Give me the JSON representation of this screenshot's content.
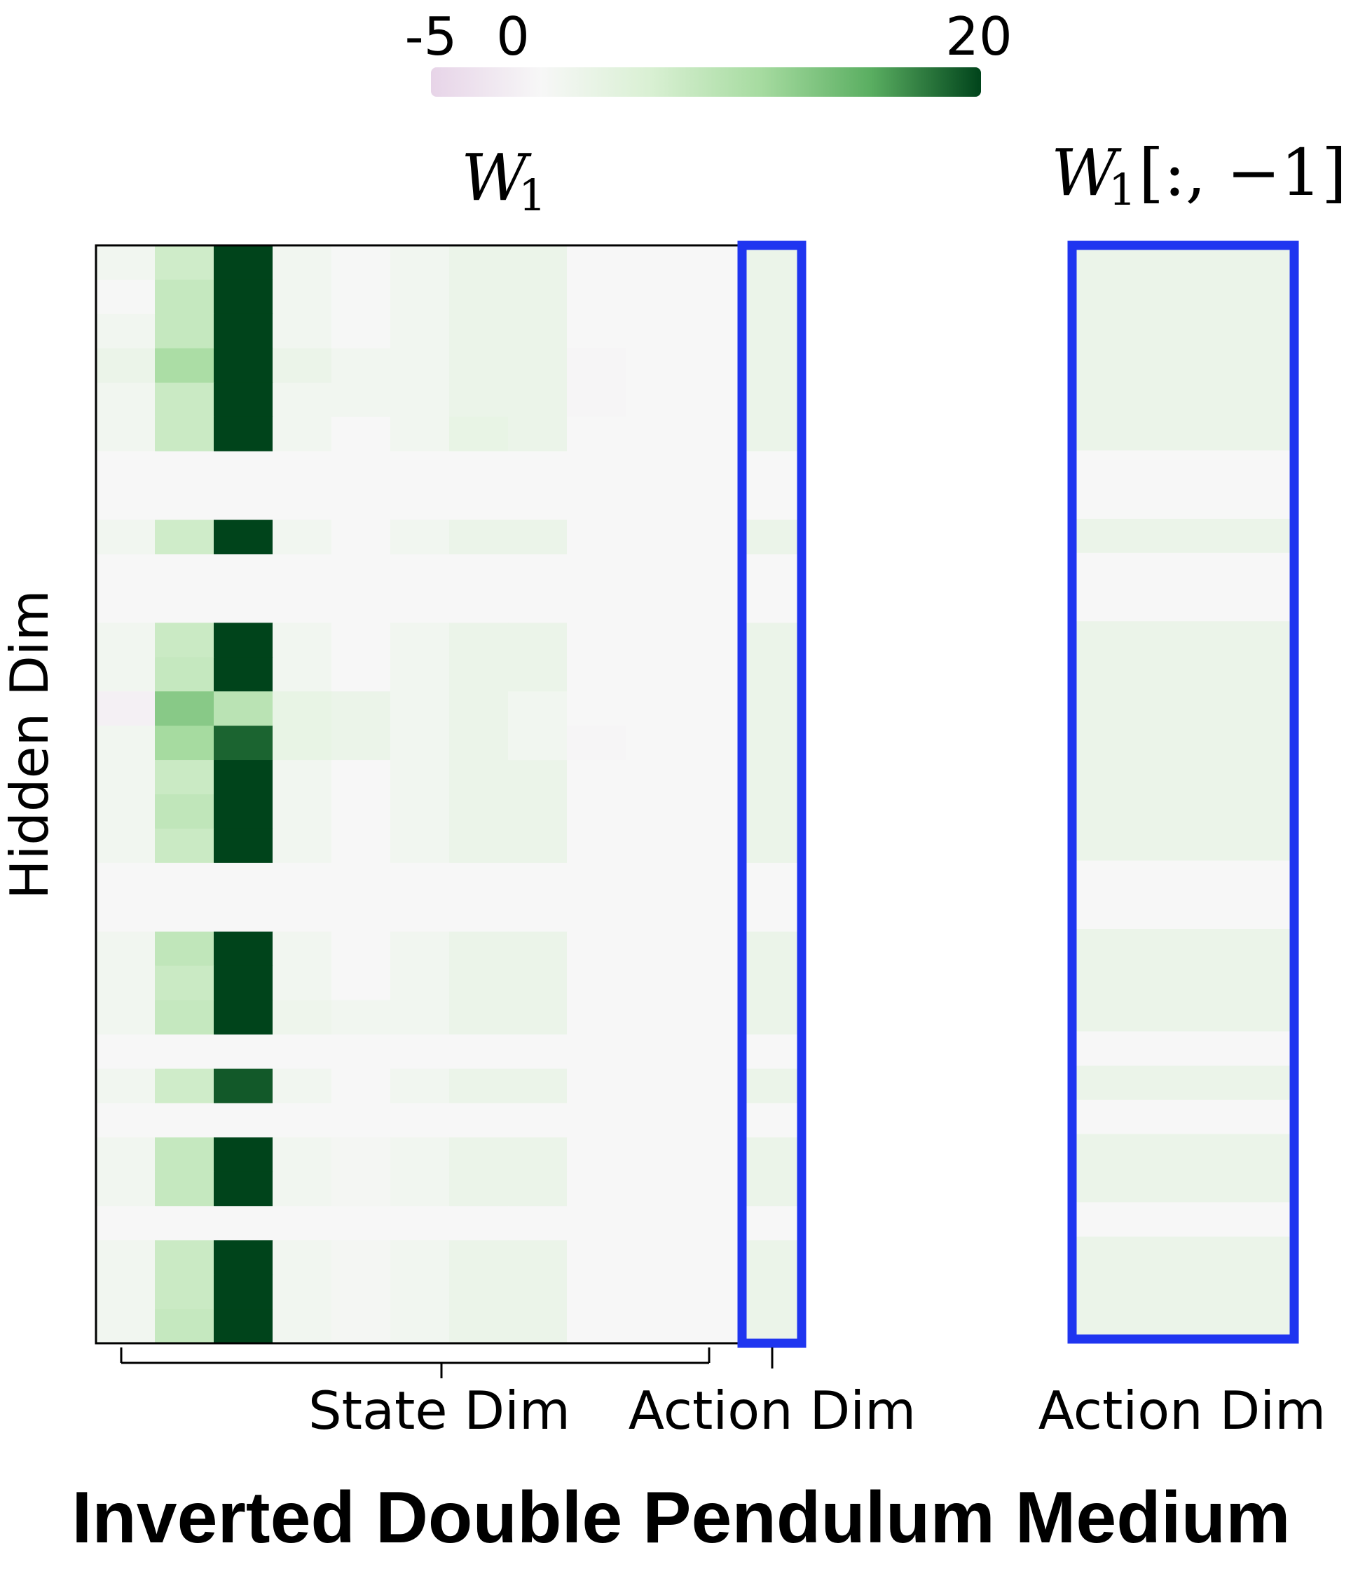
{
  "colorbar": {
    "ticks": [
      "-5",
      "0",
      "20"
    ],
    "min": -5,
    "max": 20,
    "colors": {
      "neg": "#e7d4e8",
      "zero": "#f7f7f7",
      "mid": "#a6dba0",
      "high": "#5aae61",
      "max": "#00441b"
    }
  },
  "panel_left": {
    "title_main": "W",
    "title_sub": "1"
  },
  "panel_right": {
    "title_main": "W",
    "title_sub": "1",
    "title_index": "[:, −1]"
  },
  "labels": {
    "ylabel": "Hidden Dim",
    "state_dim": "State Dim",
    "action_dim": "Action Dim",
    "action_dim_right": "Action Dim",
    "title": "Inverted Double Pendulum Medium"
  },
  "highlight_color": "#1f35f0",
  "chart_data": {
    "type": "heatmap",
    "title": "Inverted Double Pendulum Medium",
    "xlabel_state": "State Dim",
    "xlabel_action": "Action Dim",
    "ylabel": "Hidden Dim",
    "clim": [
      -5,
      20
    ],
    "n_state_cols": 11,
    "matrix": [
      [
        1.0,
        6.0,
        20,
        1.0,
        0.2,
        1.0,
        2.0,
        2.0,
        0.0,
        0.0,
        0.0,
        2.0
      ],
      [
        0.2,
        7.0,
        20,
        1.0,
        0.2,
        1.0,
        2.0,
        2.0,
        0.0,
        0.0,
        0.0,
        2.0
      ],
      [
        1.0,
        7.0,
        20,
        1.0,
        0.2,
        1.0,
        2.0,
        2.0,
        0.0,
        0.0,
        0.0,
        2.0
      ],
      [
        2.0,
        9.5,
        20,
        2.0,
        1.0,
        1.0,
        2.0,
        2.0,
        -0.3,
        0.0,
        0.0,
        2.0
      ],
      [
        1.0,
        6.5,
        20,
        1.0,
        1.0,
        1.0,
        2.0,
        2.0,
        -0.3,
        0.0,
        0.0,
        2.0
      ],
      [
        1.0,
        6.5,
        20,
        1.0,
        0.0,
        1.0,
        2.5,
        2.0,
        0.0,
        0.0,
        0.0,
        2.0
      ],
      [
        0.0,
        0.0,
        0.0,
        0.0,
        0.0,
        0.0,
        0.0,
        0.0,
        0.0,
        0.0,
        0.0,
        0.0
      ],
      [
        0.0,
        0.0,
        0.0,
        0.0,
        0.0,
        0.0,
        0.0,
        0.0,
        0.0,
        0.0,
        0.0,
        0.0
      ],
      [
        1.0,
        6.0,
        20,
        1.0,
        0.0,
        1.0,
        2.0,
        2.0,
        0.0,
        0.0,
        0.0,
        2.0
      ],
      [
        0.0,
        0.0,
        0.0,
        0.0,
        0.0,
        0.0,
        0.0,
        0.0,
        0.0,
        0.0,
        0.0,
        0.0
      ],
      [
        0.0,
        0.0,
        0.0,
        0.0,
        0.0,
        0.0,
        0.0,
        0.0,
        0.0,
        0.0,
        0.0,
        0.0
      ],
      [
        1.0,
        6.5,
        20,
        1.0,
        0.0,
        1.0,
        2.0,
        2.0,
        0.0,
        0.0,
        0.0,
        2.0
      ],
      [
        1.0,
        7.0,
        20,
        1.0,
        0.0,
        1.0,
        2.0,
        2.0,
        0.0,
        0.0,
        0.0,
        2.0
      ],
      [
        -1.0,
        12.0,
        8.0,
        2.5,
        2.0,
        1.0,
        2.0,
        1.0,
        0.0,
        0.0,
        0.0,
        2.0
      ],
      [
        1.0,
        10.0,
        18.5,
        2.5,
        2.0,
        1.0,
        2.0,
        1.0,
        -0.3,
        0.0,
        0.0,
        2.0
      ],
      [
        1.0,
        6.5,
        20,
        1.0,
        0.0,
        1.0,
        2.0,
        2.0,
        0.0,
        0.0,
        0.0,
        2.0
      ],
      [
        1.0,
        7.5,
        20,
        1.0,
        0.0,
        1.0,
        2.0,
        2.0,
        0.0,
        0.0,
        0.0,
        2.0
      ],
      [
        1.0,
        6.5,
        20,
        1.0,
        0.0,
        1.0,
        2.0,
        2.0,
        0.0,
        0.0,
        0.0,
        2.0
      ],
      [
        0.0,
        0.0,
        0.0,
        0.0,
        0.0,
        0.0,
        0.0,
        0.0,
        0.0,
        0.0,
        0.0,
        0.0
      ],
      [
        0.0,
        0.0,
        0.0,
        0.0,
        0.0,
        0.0,
        0.0,
        0.0,
        0.0,
        0.0,
        0.0,
        0.0
      ],
      [
        1.0,
        7.5,
        20,
        1.0,
        0.0,
        1.0,
        2.0,
        2.0,
        0.0,
        0.0,
        0.0,
        2.0
      ],
      [
        1.0,
        6.5,
        20,
        1.0,
        0.0,
        1.0,
        2.0,
        2.0,
        0.0,
        0.0,
        0.0,
        2.0
      ],
      [
        1.0,
        7.0,
        20,
        1.5,
        1.0,
        1.0,
        2.0,
        2.0,
        0.0,
        0.0,
        0.0,
        2.0
      ],
      [
        0.0,
        0.0,
        0.0,
        0.0,
        0.0,
        0.0,
        0.0,
        0.0,
        0.0,
        0.0,
        0.0,
        0.0
      ],
      [
        1.0,
        6.0,
        19,
        1.0,
        0.0,
        1.0,
        2.0,
        2.0,
        0.0,
        0.0,
        0.0,
        2.0
      ],
      [
        0.0,
        0.0,
        0.0,
        0.0,
        0.0,
        0.0,
        0.0,
        0.0,
        0.0,
        0.0,
        0.0,
        0.0
      ],
      [
        1.0,
        7.0,
        20,
        1.0,
        0.5,
        1.0,
        2.0,
        2.0,
        0.0,
        0.0,
        0.0,
        2.0
      ],
      [
        1.0,
        7.0,
        20,
        1.0,
        0.5,
        1.0,
        2.0,
        2.0,
        0.0,
        0.0,
        0.0,
        2.0
      ],
      [
        0.0,
        0.0,
        0.0,
        0.0,
        0.0,
        0.0,
        0.0,
        0.0,
        0.0,
        0.0,
        0.0,
        0.0
      ],
      [
        1.0,
        6.5,
        20,
        1.0,
        0.5,
        1.0,
        2.0,
        2.0,
        0.0,
        0.0,
        0.0,
        2.0
      ],
      [
        1.0,
        6.5,
        20,
        1.0,
        0.5,
        1.0,
        2.0,
        2.0,
        0.0,
        0.0,
        0.0,
        2.0
      ],
      [
        1.0,
        7.0,
        20,
        1.0,
        0.5,
        1.0,
        2.0,
        2.0,
        0.0,
        0.0,
        0.0,
        2.0
      ]
    ]
  }
}
